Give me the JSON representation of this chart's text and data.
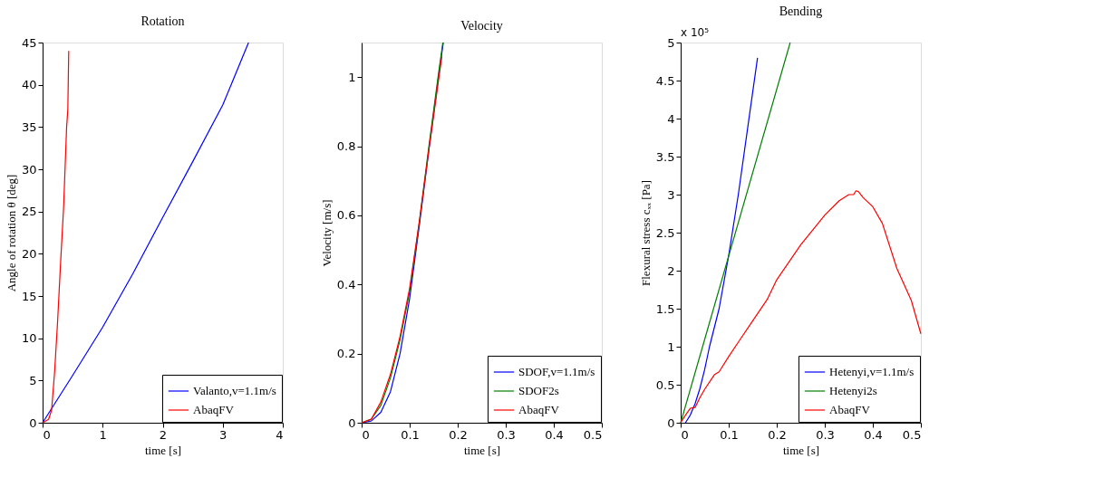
{
  "chart_data": [
    {
      "type": "line",
      "title": "Rotation",
      "xlabel": "time [s]",
      "ylabel": "Angle of rotation θ [deg]",
      "xlim": [
        0,
        4
      ],
      "ylim": [
        0,
        45
      ],
      "xticks": [
        0,
        1,
        2,
        3,
        4
      ],
      "yticks": [
        0,
        5,
        10,
        15,
        20,
        25,
        30,
        35,
        40,
        45
      ],
      "legend": "bottom right",
      "grid": false,
      "marker": "none",
      "line_style": "solid",
      "series": [
        {
          "name": "Valanto,v=1.1m/s",
          "color": "#0000ff",
          "x": [
            0,
            0.5,
            1,
            1.5,
            2,
            2.5,
            3,
            3.43
          ],
          "values": [
            0,
            5.6,
            11.3,
            17.6,
            24.3,
            30.9,
            37.6,
            45
          ]
        },
        {
          "name": "AbaqFV",
          "color": "#ff0000",
          "x": [
            0,
            0.1,
            0.15,
            0.2,
            0.25,
            0.3,
            0.35,
            0.4,
            0.42,
            0.435
          ],
          "values": [
            0,
            0.4,
            1.5,
            6,
            12,
            19,
            25.5,
            35,
            37,
            44
          ]
        }
      ]
    },
    {
      "type": "line",
      "title": "Velocity",
      "xlabel": "time [s]",
      "ylabel": "Velocity [m/s]",
      "xlim": [
        0,
        0.5
      ],
      "ylim": [
        0,
        1.1
      ],
      "xticks": [
        0,
        0.1,
        0.2,
        0.3,
        0.4,
        0.5
      ],
      "yticks": [
        0,
        0.2,
        0.4,
        0.6,
        0.8,
        1
      ],
      "legend": "bottom right",
      "grid": false,
      "marker": "none",
      "line_style": "solid",
      "series": [
        {
          "name": "SDOF,v=1.1m/s",
          "color": "#0000ff",
          "x": [
            0,
            0.02,
            0.04,
            0.06,
            0.08,
            0.1,
            0.12,
            0.14,
            0.16,
            0.17
          ],
          "values": [
            0,
            0.005,
            0.03,
            0.09,
            0.2,
            0.36,
            0.57,
            0.79,
            1.0,
            1.1
          ]
        },
        {
          "name": "SDOF2s",
          "color": "#008000",
          "x": [
            0,
            0.02,
            0.04,
            0.06,
            0.08,
            0.1,
            0.12,
            0.14,
            0.16,
            0.169
          ],
          "values": [
            0,
            0.01,
            0.05,
            0.13,
            0.24,
            0.38,
            0.58,
            0.8,
            1.01,
            1.1
          ]
        },
        {
          "name": "AbaqFV",
          "color": "#ff0000",
          "x": [
            0,
            0.02,
            0.04,
            0.06,
            0.08,
            0.1,
            0.12,
            0.14,
            0.16,
            0.167
          ],
          "values": [
            0,
            0.01,
            0.06,
            0.14,
            0.25,
            0.39,
            0.58,
            0.79,
            0.99,
            1.06
          ]
        }
      ]
    },
    {
      "type": "line",
      "title": "Bending",
      "xlabel": "time [s]",
      "ylabel": "Flexural stress cₓₓ [Pa]",
      "annotations": [
        "x 10⁵"
      ],
      "xlim": [
        0,
        0.5
      ],
      "ylim": [
        0,
        5
      ],
      "xticks": [
        0,
        0.1,
        0.2,
        0.3,
        0.4,
        0.5
      ],
      "yticks": [
        0,
        0.5,
        1,
        1.5,
        2,
        2.5,
        3,
        3.5,
        4,
        4.5,
        5
      ],
      "legend": "bottom right",
      "grid": false,
      "marker": "none",
      "line_style": "solid",
      "series": [
        {
          "name": "Hetenyi,v=1.1m/s",
          "color": "#0000ff",
          "x": [
            0.01,
            0.02,
            0.03,
            0.04,
            0.05,
            0.06,
            0.08,
            0.1,
            0.12,
            0.14,
            0.16
          ],
          "values": [
            0,
            0.1,
            0.25,
            0.45,
            0.7,
            1.0,
            1.5,
            2.2,
            3.0,
            3.9,
            4.8
          ]
        },
        {
          "name": "Hetenyi2s",
          "color": "#008000",
          "x": [
            0,
            0.228
          ],
          "values": [
            0,
            5
          ]
        },
        {
          "name": "AbaqFV",
          "color": "#ff0000",
          "x": [
            0,
            0.01,
            0.02,
            0.03,
            0.04,
            0.05,
            0.07,
            0.08,
            0.1,
            0.12,
            0.15,
            0.18,
            0.2,
            0.25,
            0.3,
            0.33,
            0.35,
            0.36,
            0.365,
            0.37,
            0.38,
            0.4,
            0.42,
            0.45,
            0.48,
            0.5
          ],
          "values": [
            0,
            0.1,
            0.19,
            0.2,
            0.33,
            0.44,
            0.63,
            0.67,
            0.87,
            1.06,
            1.34,
            1.62,
            1.88,
            2.34,
            2.73,
            2.92,
            3.0,
            3.0,
            3.05,
            3.04,
            2.96,
            2.84,
            2.62,
            2.03,
            1.61,
            1.17
          ]
        }
      ]
    }
  ]
}
